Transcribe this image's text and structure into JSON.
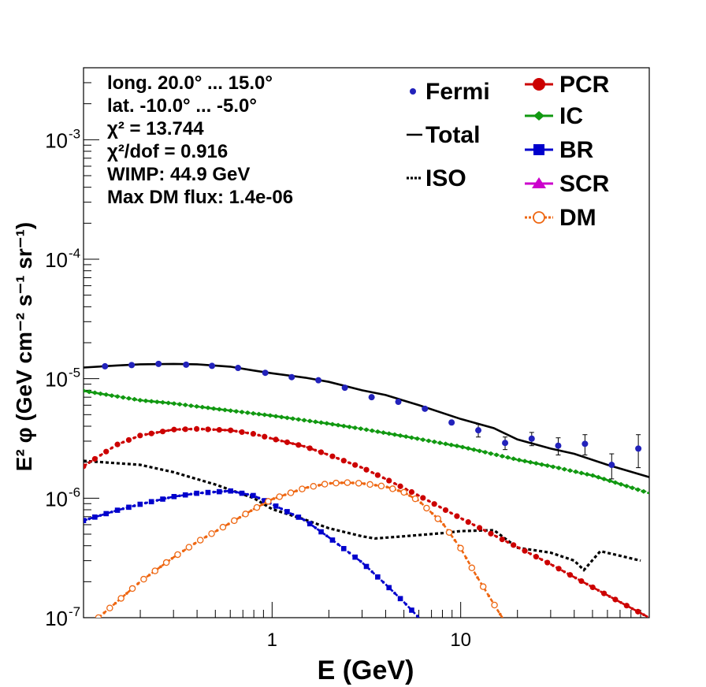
{
  "chart_data": {
    "type": "line",
    "xscale": "log",
    "yscale": "log",
    "xlim": [
      0.1,
      100
    ],
    "ylim": [
      1e-07,
      0.004
    ],
    "xlabel": "E (GeV)",
    "ylabel": "E² φ (GeV cm⁻² s⁻¹ sr⁻¹)",
    "x_tick_labels": [
      {
        "value": 1,
        "label": "1"
      },
      {
        "value": 10,
        "label": "10"
      }
    ],
    "y_tick_labels": [
      {
        "value": 1e-07,
        "mant": "10",
        "exp": "-7"
      },
      {
        "value": 1e-06,
        "mant": "10",
        "exp": "-6"
      },
      {
        "value": 1e-05,
        "mant": "10",
        "exp": "-5"
      },
      {
        "value": 0.0001,
        "mant": "10",
        "exp": "-4"
      },
      {
        "value": 0.001,
        "mant": "10",
        "exp": "-3"
      }
    ],
    "info_text": [
      "long. 20.0° ... 15.0°",
      "lat. -10.0° ... -5.0°",
      "χ² = 13.744",
      "χ²/dof = 0.916",
      "WIMP: 44.9 GeV",
      "Max DM flux: 1.4e-06"
    ],
    "legend": [
      {
        "name": "Fermi",
        "marker": "dot",
        "color": "#2222bb"
      },
      {
        "name": "Total",
        "marker": "line",
        "color": "#000000"
      },
      {
        "name": "ISO",
        "marker": "dotted",
        "color": "#000000"
      },
      {
        "name": "PCR",
        "marker": "circle",
        "color": "#cc0000"
      },
      {
        "name": "IC",
        "marker": "star",
        "color": "#119911"
      },
      {
        "name": "BR",
        "marker": "square",
        "color": "#0000cc"
      },
      {
        "name": "SCR",
        "marker": "triangle",
        "color": "#cc00cc"
      },
      {
        "name": "DM",
        "marker": "open-circle",
        "color": "#ee6611"
      }
    ],
    "fermi": {
      "name": "Fermi",
      "color": "#2222bb",
      "points": [
        {
          "x": 0.13,
          "y": 1.27e-05
        },
        {
          "x": 0.18,
          "y": 1.3e-05
        },
        {
          "x": 0.25,
          "y": 1.33e-05
        },
        {
          "x": 0.35,
          "y": 1.31e-05
        },
        {
          "x": 0.48,
          "y": 1.28e-05
        },
        {
          "x": 0.66,
          "y": 1.23e-05
        },
        {
          "x": 0.92,
          "y": 1.12e-05
        },
        {
          "x": 1.27,
          "y": 1.03e-05
        },
        {
          "x": 1.76,
          "y": 9.7e-06
        },
        {
          "x": 2.43,
          "y": 8.4e-06
        },
        {
          "x": 3.37,
          "y": 7e-06
        },
        {
          "x": 4.67,
          "y": 6.4e-06
        },
        {
          "x": 6.46,
          "y": 5.6e-06
        },
        {
          "x": 8.95,
          "y": 4.3e-06
        },
        {
          "x": 12.4,
          "y": 3.7e-06,
          "err": 4.5e-07
        },
        {
          "x": 17.2,
          "y": 2.9e-06,
          "err": 3.5e-07
        },
        {
          "x": 23.8,
          "y": 3.15e-06,
          "err": 4e-07
        },
        {
          "x": 32.9,
          "y": 2.75e-06,
          "err": 4.5e-07
        },
        {
          "x": 45.6,
          "y": 2.85e-06,
          "err": 5.5e-07
        },
        {
          "x": 63.2,
          "y": 1.9e-06,
          "err": 4.5e-07
        },
        {
          "x": 87.5,
          "y": 2.6e-06,
          "err": 8e-07
        }
      ]
    },
    "series": [
      {
        "name": "Total",
        "color": "#000000",
        "style": "solid",
        "x": [
          0.1,
          0.15,
          0.2,
          0.3,
          0.4,
          0.6,
          0.8,
          1,
          1.5,
          2,
          3,
          4,
          6,
          10,
          15,
          20,
          30,
          40,
          60,
          100
        ],
        "y": [
          1.24e-05,
          1.29e-05,
          1.32e-05,
          1.33e-05,
          1.32e-05,
          1.26e-05,
          1.17e-05,
          1.11e-05,
          1.02e-05,
          9.4e-06,
          8e-06,
          7.3e-06,
          6e-06,
          4.6e-06,
          3.85e-06,
          3.1e-06,
          2.6e-06,
          2.35e-06,
          1.9e-06,
          1.5e-06
        ]
      },
      {
        "name": "ISO",
        "color": "#000000",
        "style": "dotted",
        "x": [
          0.1,
          0.2,
          0.3,
          0.5,
          0.8,
          1,
          1.5,
          2,
          3,
          3.5,
          5,
          8,
          10,
          15,
          20,
          30,
          40,
          45,
          55,
          70,
          90
        ],
        "y": [
          2.05e-06,
          1.9e-06,
          1.65e-06,
          1.3e-06,
          1e-06,
          8.1e-07,
          6.6e-07,
          5.6e-07,
          4.8e-07,
          4.6e-07,
          4.8e-07,
          5.1e-07,
          5.3e-07,
          5.4e-07,
          3.85e-07,
          3.5e-07,
          3e-07,
          2.5e-07,
          3.6e-07,
          3.3e-07,
          3e-07
        ]
      },
      {
        "name": "PCR",
        "color": "#cc0000",
        "style": "dense-markers",
        "marker": "circle",
        "x": [
          0.1,
          0.15,
          0.2,
          0.3,
          0.4,
          0.6,
          0.8,
          1,
          1.5,
          2,
          3,
          4,
          6,
          10,
          15,
          20,
          30,
          50,
          70,
          100
        ],
        "y": [
          1.85e-06,
          2.8e-06,
          3.35e-06,
          3.75e-06,
          3.8e-06,
          3.7e-06,
          3.45e-06,
          3.15e-06,
          2.7e-06,
          2.3e-06,
          1.8e-06,
          1.45e-06,
          1.05e-06,
          6.8e-07,
          4.9e-07,
          3.9e-07,
          2.8e-07,
          1.8e-07,
          1.35e-07,
          1e-07
        ]
      },
      {
        "name": "IC",
        "color": "#119911",
        "style": "dense-markers",
        "marker": "star",
        "x": [
          0.1,
          0.2,
          0.3,
          0.5,
          1,
          2,
          3,
          5,
          10,
          20,
          30,
          50,
          100
        ],
        "y": [
          7.9e-06,
          6.6e-06,
          6.2e-06,
          5.6e-06,
          4.9e-06,
          4.2e-06,
          3.8e-06,
          3.3e-06,
          2.7e-06,
          2.1e-06,
          1.85e-06,
          1.55e-06,
          1.1e-06
        ]
      },
      {
        "name": "BR",
        "color": "#0000cc",
        "style": "dense-markers",
        "marker": "square",
        "x": [
          0.1,
          0.15,
          0.2,
          0.3,
          0.4,
          0.6,
          0.8,
          1,
          1.5,
          2,
          3,
          4,
          5,
          6
        ],
        "y": [
          6.5e-07,
          7.9e-07,
          8.9e-07,
          1.03e-06,
          1.1e-06,
          1.15e-06,
          1.05e-06,
          8.9e-07,
          6.5e-07,
          4.7e-07,
          2.9e-07,
          1.9e-07,
          1.35e-07,
          1e-07
        ]
      },
      {
        "name": "DM",
        "color": "#ee6611",
        "style": "dense-markers",
        "marker": "open-circle",
        "x": [
          0.12,
          0.15,
          0.2,
          0.3,
          0.4,
          0.6,
          0.8,
          1,
          1.5,
          2,
          2.5,
          3,
          4,
          5,
          6,
          8,
          10,
          12,
          14,
          16,
          17
        ],
        "y": [
          1e-07,
          1.35e-07,
          2e-07,
          3.2e-07,
          4.3e-07,
          6.2e-07,
          8.1e-07,
          9.8e-07,
          1.22e-06,
          1.33e-06,
          1.35e-06,
          1.33e-06,
          1.25e-06,
          1.12e-06,
          9.5e-07,
          6.2e-07,
          3.8e-07,
          2.3e-07,
          1.55e-07,
          1.1e-07,
          9.5e-08
        ]
      }
    ]
  }
}
